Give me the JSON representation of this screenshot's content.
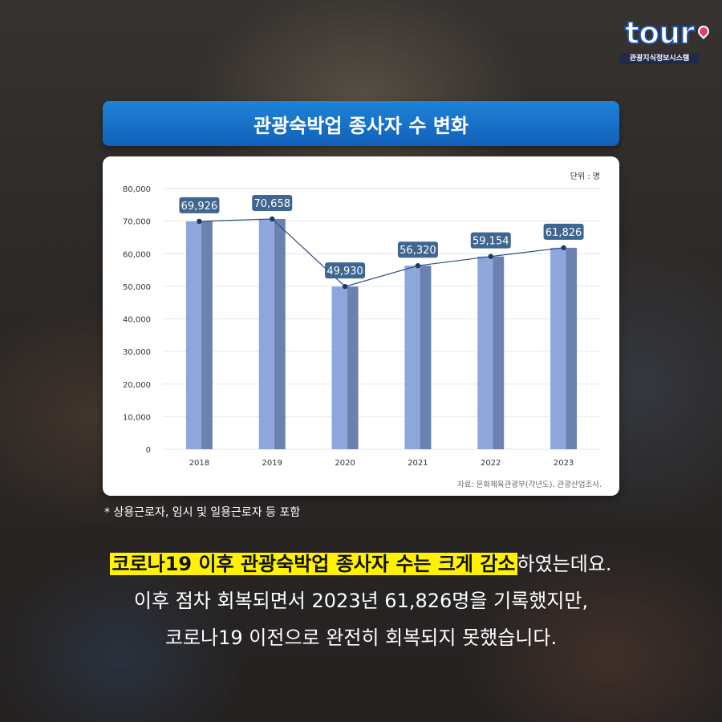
{
  "logo": {
    "word": "tour",
    "subtitle": "관광지식정보시스템"
  },
  "title": "관광숙박업 종사자 수 변화",
  "chart_data": {
    "type": "bar",
    "unit_label": "단위 : 명",
    "categories": [
      "2018",
      "2019",
      "2020",
      "2021",
      "2022",
      "2023"
    ],
    "values": [
      69926,
      70658,
      49930,
      56320,
      59154,
      61826
    ],
    "value_labels": [
      "69,926",
      "70,658",
      "49,930",
      "56,320",
      "59,154",
      "61,826"
    ],
    "yticks": [
      "0",
      "10,000",
      "20,000",
      "30,000",
      "40,000",
      "50,000",
      "60,000",
      "70,000",
      "80,000"
    ],
    "ylim": [
      0,
      80000
    ],
    "line_overlay": true,
    "grid": true,
    "source": "자료: 문화체육관광부(각년도). 관광산업조사.",
    "colors": {
      "bar": "#8ea7db",
      "bar_shade": "#6b82b0",
      "line": "#2a4d7a",
      "label_bg": "#3f6690"
    }
  },
  "footnote": "* 상용근로자, 임시 및 일용근로자 등 포함",
  "description": {
    "highlight": "코로나19 이후 관광숙박업 종사자 수는 크게 감소",
    "line1_rest": "하였는데요.",
    "line2": "이후 점차 회복되면서 2023년 61,826명을 기록했지만,",
    "line3": "코로나19 이전으로 완전히 회복되지 못했습니다."
  }
}
